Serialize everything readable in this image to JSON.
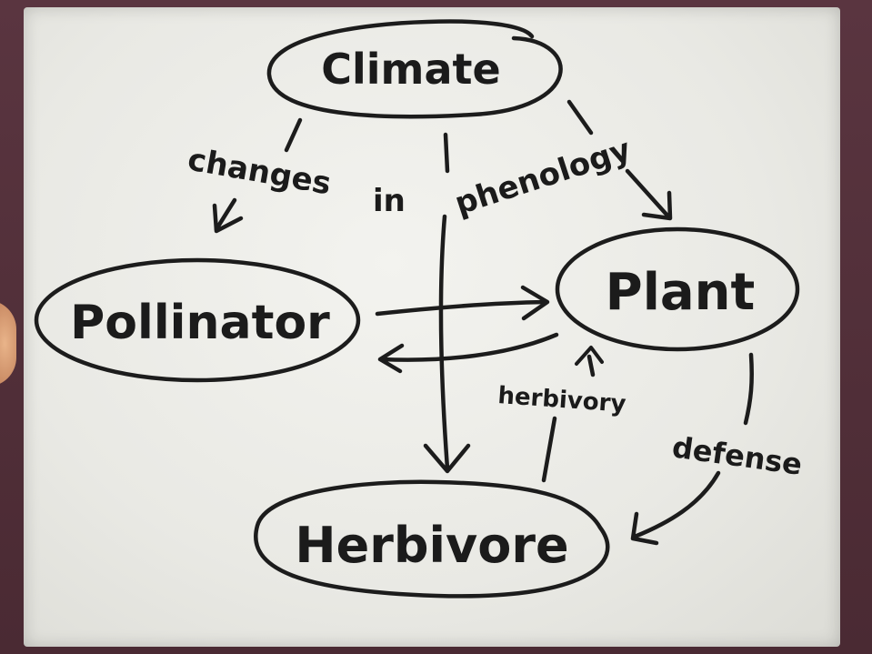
{
  "diagram": {
    "nodes": {
      "climate": "Climate",
      "pollinator": "Pollinator",
      "plant": "Plant",
      "herbivore": "Herbivore"
    },
    "edge_labels": {
      "changes": "changes",
      "in": "in",
      "phenology": "phenology",
      "herbivory": "herbivory",
      "defense": "defense"
    }
  }
}
